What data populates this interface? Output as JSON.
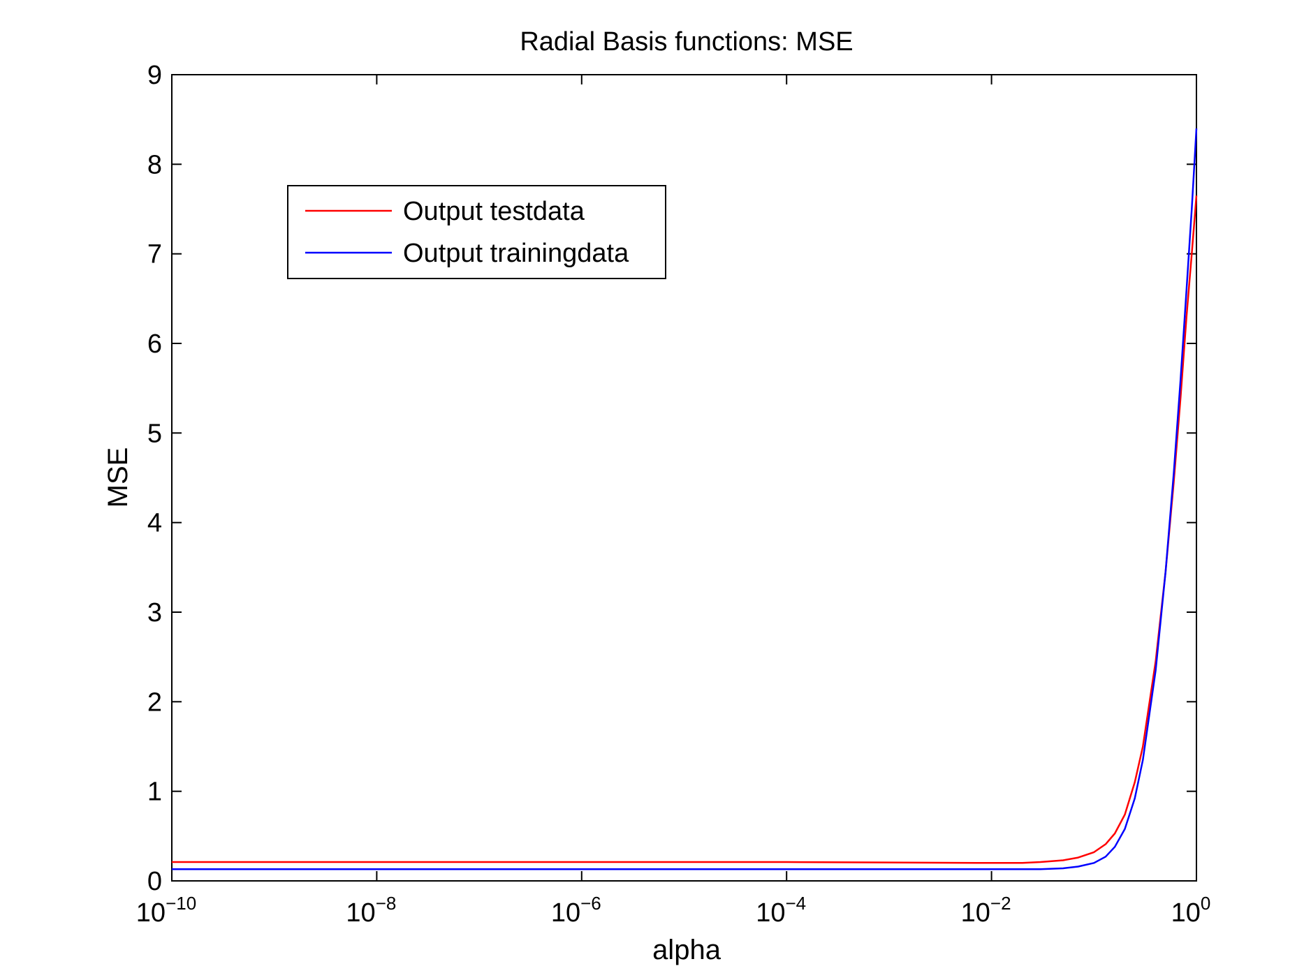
{
  "chart_data": {
    "type": "line",
    "title": "Radial Basis functions: MSE",
    "xlabel": "alpha",
    "ylabel": "MSE",
    "x_scale": "log",
    "xlim": [
      1e-10,
      1
    ],
    "ylim": [
      0,
      9
    ],
    "grid": false,
    "legend_position": "top-left",
    "x_ticks": [
      {
        "base": "10",
        "exp": "−10",
        "value": 1e-10
      },
      {
        "base": "10",
        "exp": "−8",
        "value": 1e-08
      },
      {
        "base": "10",
        "exp": "−6",
        "value": 1e-06
      },
      {
        "base": "10",
        "exp": "−4",
        "value": 0.0001
      },
      {
        "base": "10",
        "exp": "−2",
        "value": 0.01
      },
      {
        "base": "10",
        "exp": "0",
        "value": 1
      }
    ],
    "y_ticks": [
      "0",
      "1",
      "2",
      "3",
      "4",
      "5",
      "6",
      "7",
      "8",
      "9"
    ],
    "series": [
      {
        "name": "Output testdata",
        "color": "#ff0000",
        "x": [
          1e-10,
          1e-08,
          1e-06,
          0.0001,
          0.01,
          0.02,
          0.03,
          0.05,
          0.07,
          0.1,
          0.13,
          0.16,
          0.2,
          0.25,
          0.3,
          0.4,
          0.5,
          0.6,
          0.7,
          0.8,
          0.9,
          1.0
        ],
        "y": [
          0.21,
          0.21,
          0.21,
          0.21,
          0.2,
          0.2,
          0.21,
          0.23,
          0.26,
          0.32,
          0.41,
          0.53,
          0.74,
          1.1,
          1.5,
          2.45,
          3.45,
          4.45,
          5.4,
          6.3,
          7.0,
          7.65
        ]
      },
      {
        "name": "Output trainingdata",
        "color": "#0000ff",
        "x": [
          1e-10,
          1e-08,
          1e-06,
          0.0001,
          0.01,
          0.02,
          0.03,
          0.05,
          0.07,
          0.1,
          0.13,
          0.16,
          0.2,
          0.25,
          0.3,
          0.4,
          0.5,
          0.6,
          0.7,
          0.8,
          0.9,
          1.0
        ],
        "y": [
          0.13,
          0.13,
          0.13,
          0.13,
          0.13,
          0.13,
          0.13,
          0.14,
          0.16,
          0.2,
          0.27,
          0.38,
          0.58,
          0.92,
          1.35,
          2.35,
          3.45,
          4.55,
          5.6,
          6.6,
          7.5,
          8.4
        ]
      }
    ]
  }
}
